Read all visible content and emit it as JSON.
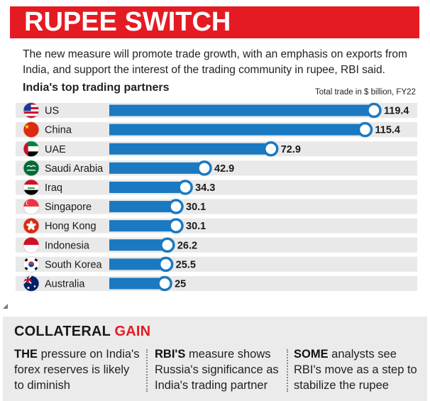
{
  "header": {
    "title": "RUPEE SWITCH"
  },
  "subtitle": "The new measure will promote trade growth, with an emphasis on exports from India, and support the interest of the trading community in rupee, RBI said.",
  "chart_data": {
    "type": "bar",
    "orientation": "horizontal",
    "title": "India's top trading partners",
    "unit_label": "Total trade in $ billion, FY22",
    "categories": [
      "US",
      "China",
      "UAE",
      "Saudi Arabia",
      "Iraq",
      "Singapore",
      "Hong Kong",
      "Indonesia",
      "South Korea",
      "Australia"
    ],
    "values": [
      119.4,
      115.4,
      72.9,
      42.9,
      34.3,
      30.1,
      30.1,
      26.2,
      25.5,
      25
    ],
    "value_labels": [
      "119.4",
      "115.4",
      "72.9",
      "42.9",
      "34.3",
      "30.1",
      "30.1",
      "26.2",
      "25.5",
      "25"
    ],
    "flag_icons": [
      "us-flag-icon",
      "china-flag-icon",
      "uae-flag-icon",
      "saudi-arabia-flag-icon",
      "iraq-flag-icon",
      "singapore-flag-icon",
      "hong-kong-flag-icon",
      "indonesia-flag-icon",
      "south-korea-flag-icon",
      "australia-flag-icon"
    ],
    "bar_color": "#1a79c0",
    "row_band_color": "#e9e9e9",
    "grid": false,
    "legend": "none"
  },
  "panel": {
    "title_main": "COLLATERAL",
    "title_accent": "GAIN",
    "accent_color": "#e41b23",
    "points": [
      {
        "lead": "THE",
        "text": " pressure on India's forex reserves is likely to diminish"
      },
      {
        "lead": "RBI'S",
        "text": " measure shows Russia's significance as India's trading partner"
      },
      {
        "lead": "SOME",
        "text": " analysts see RBI's move as a step to stabilize the rupee"
      }
    ]
  },
  "colors": {
    "banner": "#e41b23",
    "bar": "#1a79c0",
    "panel": "#ebebeb"
  }
}
